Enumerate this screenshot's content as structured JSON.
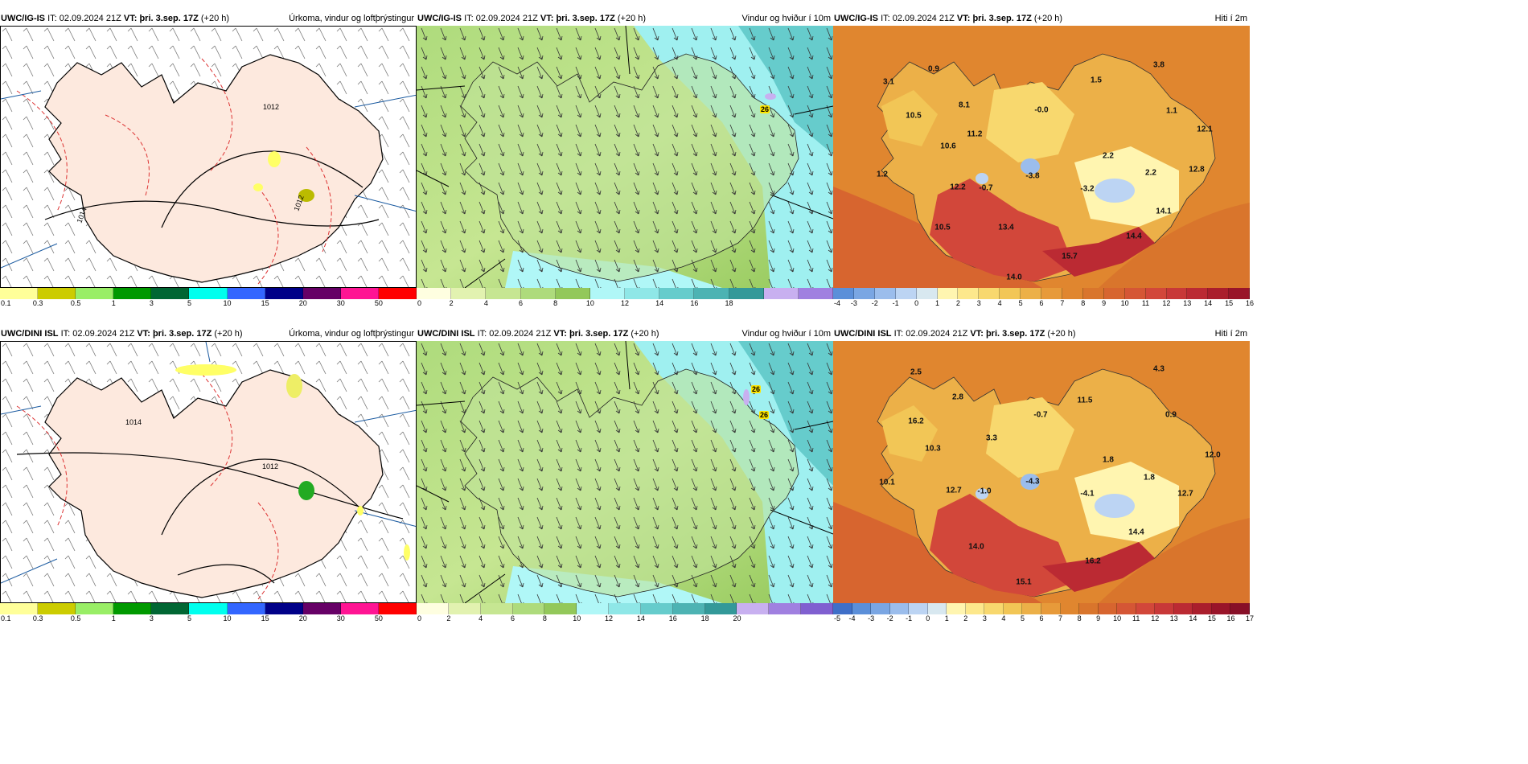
{
  "rows": [
    {
      "model": "UWC/IG-IS",
      "it_label": "IT:",
      "it_value": "02.09.2024 21Z",
      "vt_label": "VT:",
      "vt_value": "þri. 3.sep. 17Z",
      "lead": "(+20 h)",
      "panels": [
        {
          "title": "Úrkoma, vindur og loftþrýstingur",
          "pressure_labels": [
            "1012",
            "1014",
            "1012"
          ],
          "colorbar": {
            "colors": [
              "#ffff99",
              "#cccc00",
              "#99ee66",
              "#009900",
              "#006633",
              "#00ffee",
              "#3366ff",
              "#000088",
              "#660066",
              "#ff1493",
              "#ff0000"
            ],
            "ticks": [
              "0.1",
              "0.3",
              "0.5",
              "1",
              "3",
              "5",
              "10",
              "15",
              "20",
              "30",
              "50"
            ]
          }
        },
        {
          "title": "Vindur og hviður í 10m",
          "gusts": [
            "26"
          ],
          "colorbar": {
            "colors": [
              "#fefee0",
              "#e2f2b0",
              "#c6e692",
              "#aedb7c",
              "#93c85a",
              "#b0f7f7",
              "#8fe7e7",
              "#66cccc",
              "#4db3b3",
              "#339999",
              "#c8b0f0",
              "#a080e0"
            ],
            "ticks": [
              "0",
              "2",
              "4",
              "6",
              "8",
              "10",
              "12",
              "14",
              "16",
              "18"
            ]
          }
        },
        {
          "title": "Hiti í 2m",
          "temps": [
            "0.9",
            "3.8",
            "3.1",
            "1.5",
            "8.1",
            "10.5",
            "-0.0",
            "1.1",
            "11.2",
            "12.1",
            "10.6",
            "2.2",
            "1.2",
            "12.2",
            "-0.7",
            "-3.8",
            "-3.2",
            "2.2",
            "12.8",
            "14.1",
            "10.5",
            "13.4",
            "14.4",
            "15.7",
            "14.0"
          ],
          "colorbar": {
            "colors": [
              "#5b8fd9",
              "#7aa6e3",
              "#9bbdec",
              "#bcd4f3",
              "#d8e8f0",
              "#fff5b0",
              "#fde88c",
              "#f8d86e",
              "#f2c656",
              "#ecb048",
              "#e79a3a",
              "#e0862f",
              "#d9752c",
              "#d7652f",
              "#d55635",
              "#d2473a",
              "#c83838",
              "#bb2a33",
              "#aa1e2c",
              "#991429"
            ],
            "ticks": [
              "-4",
              "-3",
              "-2",
              "-1",
              "0",
              "1",
              "2",
              "3",
              "4",
              "5",
              "6",
              "7",
              "8",
              "9",
              "10",
              "11",
              "12",
              "13",
              "14",
              "15",
              "16"
            ]
          }
        }
      ]
    },
    {
      "model": "UWC/DINI ISL",
      "it_label": "IT:",
      "it_value": "02.09.2024 21Z",
      "vt_label": "VT:",
      "vt_value": "þri. 3.sep. 17Z",
      "lead": "(+20 h)",
      "panels": [
        {
          "title": "Úrkoma, vindur og loftþrýstingur",
          "pressure_labels": [
            "1014",
            "1012"
          ],
          "colorbar": {
            "colors": [
              "#ffff99",
              "#cccc00",
              "#99ee66",
              "#009900",
              "#006633",
              "#00ffee",
              "#3366ff",
              "#000088",
              "#660066",
              "#ff1493",
              "#ff0000"
            ],
            "ticks": [
              "0.1",
              "0.3",
              "0.5",
              "1",
              "3",
              "5",
              "10",
              "15",
              "20",
              "30",
              "50"
            ]
          }
        },
        {
          "title": "Vindur og hviður í 10m",
          "gusts": [
            "26",
            "26"
          ],
          "colorbar": {
            "colors": [
              "#fefee0",
              "#e2f2b0",
              "#c6e692",
              "#aedb7c",
              "#93c85a",
              "#b0f7f7",
              "#8fe7e7",
              "#66cccc",
              "#4db3b3",
              "#339999",
              "#c8b0f0",
              "#a080e0",
              "#8060d0"
            ],
            "ticks": [
              "0",
              "2",
              "4",
              "6",
              "8",
              "10",
              "12",
              "14",
              "16",
              "18",
              "20"
            ]
          }
        },
        {
          "title": "Hiti í 2m",
          "temps": [
            "2.5",
            "4.3",
            "2.8",
            "11.5",
            "16.2",
            "-0.7",
            "0.9",
            "3.3",
            "10.3",
            "12.0",
            "1.8",
            "1.8",
            "10.1",
            "12.7",
            "-1.0",
            "-4.3",
            "-4.1",
            "12.7",
            "14.4",
            "14.0",
            "16.2",
            "15.1"
          ],
          "colorbar": {
            "colors": [
              "#3f6fc8",
              "#5b8fd9",
              "#7aa6e3",
              "#9bbdec",
              "#bcd4f3",
              "#d8e8f0",
              "#fff5b0",
              "#fde88c",
              "#f8d86e",
              "#f2c656",
              "#ecb048",
              "#e79a3a",
              "#e0862f",
              "#d9752c",
              "#d7652f",
              "#d55635",
              "#d2473a",
              "#c83838",
              "#bb2a33",
              "#aa1e2c",
              "#991429",
              "#870f27"
            ],
            "ticks": [
              "-5",
              "-4",
              "-3",
              "-2",
              "-1",
              "0",
              "1",
              "2",
              "3",
              "4",
              "5",
              "6",
              "7",
              "8",
              "9",
              "10",
              "11",
              "12",
              "13",
              "14",
              "15",
              "16",
              "17"
            ]
          }
        }
      ]
    }
  ]
}
